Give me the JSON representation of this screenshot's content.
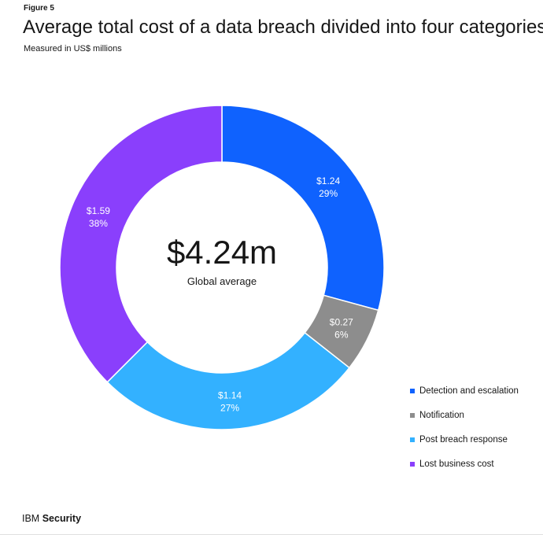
{
  "figure_label": "Figure 5",
  "footer": {
    "brand": "IBM",
    "product": "Security"
  },
  "chart_data": {
    "type": "pie",
    "donut": true,
    "title": "Average total cost of a data breach divided into four categories",
    "subtitle": "Measured in US$ millions",
    "center_value": "$4.24m",
    "center_label": "Global average",
    "categories": [
      "Detection and escalation",
      "Notification",
      "Post breach response",
      "Lost business cost"
    ],
    "values": [
      1.24,
      0.27,
      1.14,
      1.59
    ],
    "value_labels": [
      "$1.24",
      "$0.27",
      "$1.14",
      "$1.59"
    ],
    "percent_labels": [
      "29%",
      "6%",
      "27%",
      "38%"
    ],
    "colors": [
      "#0f62fe",
      "#8d8d8d",
      "#33b1ff",
      "#8a3ffc"
    ],
    "legend_position": "bottom-right"
  }
}
